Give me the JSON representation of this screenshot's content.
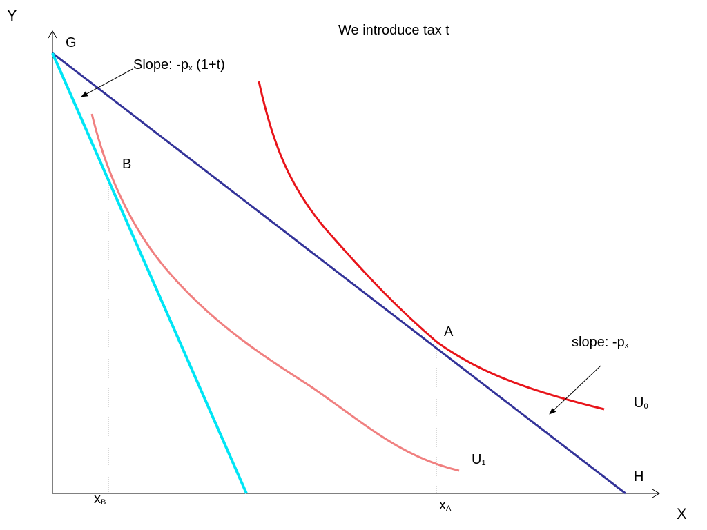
{
  "title": "We introduce tax t",
  "axes": {
    "y_label": "Y",
    "x_label": "X"
  },
  "points": {
    "G": "G",
    "H": "H",
    "A": "A",
    "B": "B"
  },
  "annotations": {
    "slope_tax_prefix": "Slope: -p",
    "slope_tax_sub": "x",
    "slope_tax_suffix": " (1+t)",
    "slope_orig_prefix": "slope: -p",
    "slope_orig_sub": "x"
  },
  "curves": {
    "u0_main": "U",
    "u0_sub": "0",
    "u1_main": "U",
    "u1_sub": "1"
  },
  "ticks": {
    "xb_main": "x",
    "xb_sub": "B",
    "xa_main": "x",
    "xa_sub": "A"
  },
  "colors": {
    "budget_original": "#333399",
    "budget_taxed": "#00e5f5",
    "u0": "#e8141a",
    "u1": "#f08080",
    "axes": "#000000",
    "guide": "#b0b0b0"
  }
}
